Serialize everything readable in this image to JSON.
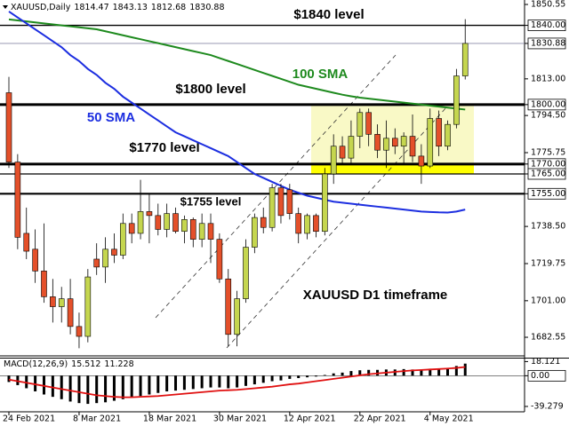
{
  "chart_data": [
    {
      "type": "candlestick",
      "title": "XAUUSD,Daily",
      "annotation": "XAUUSD D1 timeframe",
      "categories": [
        "24 Feb 2021",
        null,
        null,
        null,
        null,
        null,
        null,
        null,
        "8 Mar 2021",
        null,
        null,
        null,
        null,
        null,
        null,
        null,
        "18 Mar 2021",
        null,
        null,
        null,
        null,
        null,
        null,
        null,
        "30 Mar 2021",
        null,
        null,
        null,
        null,
        null,
        null,
        null,
        "12 Apr 2021",
        null,
        null,
        null,
        null,
        null,
        null,
        null,
        "22 Apr 2021",
        null,
        null,
        null,
        null,
        null,
        null,
        null,
        "4 May 2021",
        null,
        null,
        null,
        null
      ],
      "open": [
        1806,
        1771,
        1735,
        1727,
        1716,
        1703,
        1698,
        1702,
        1688,
        1683,
        1722,
        1718,
        1727,
        1724,
        1740,
        1735,
        1746,
        1744,
        1737,
        1745,
        1736,
        1742,
        1732,
        1740,
        1732,
        1712,
        1684,
        1702,
        1728,
        1743,
        1738,
        1758,
        1757,
        1745,
        1735,
        1744,
        1736,
        1765,
        1779,
        1773,
        1784,
        1796,
        1785,
        1777,
        1783,
        1779,
        1784,
        1774,
        1769,
        1793,
        1779,
        1790,
        1814.47
      ],
      "high": [
        1814,
        1775,
        1748,
        1737,
        1740,
        1712,
        1708,
        1712,
        1695,
        1717,
        1730,
        1733,
        1735,
        1745,
        1745,
        1762,
        1755,
        1750,
        1750,
        1748,
        1744,
        1743,
        1745,
        1745,
        1735,
        1717,
        1706,
        1732,
        1745,
        1748,
        1760,
        1760,
        1760,
        1748,
        1745,
        1745,
        1768,
        1785,
        1784,
        1792,
        1798,
        1798,
        1790,
        1792,
        1788,
        1786,
        1795,
        1780,
        1798,
        1797,
        1792,
        1818,
        1843.13
      ],
      "low": [
        1768,
        1727,
        1722,
        1710,
        1700,
        1690,
        1690,
        1684,
        1677,
        1680,
        1714,
        1710,
        1720,
        1722,
        1730,
        1732,
        1730,
        1734,
        1733,
        1735,
        1730,
        1728,
        1728,
        1720,
        1710,
        1678,
        1678,
        1700,
        1725,
        1735,
        1736,
        1740,
        1742,
        1730,
        1732,
        1733,
        1734,
        1760,
        1770,
        1770,
        1778,
        1779,
        1773,
        1768,
        1775,
        1770,
        1771,
        1760,
        1768,
        1774,
        1777,
        1788,
        1812.68
      ],
      "close": [
        1771,
        1733,
        1726,
        1716,
        1703,
        1698,
        1702,
        1688,
        1683,
        1713,
        1718,
        1727,
        1724,
        1740,
        1735,
        1746,
        1744,
        1737,
        1745,
        1736,
        1742,
        1732,
        1740,
        1732,
        1712,
        1684,
        1702,
        1728,
        1743,
        1738,
        1758,
        1744,
        1745,
        1735,
        1744,
        1736,
        1765,
        1779,
        1773,
        1784,
        1796,
        1785,
        1777,
        1783,
        1779,
        1784,
        1774,
        1769,
        1793,
        1779,
        1790,
        1814.47,
        1830.88
      ],
      "up_color": "#c5d64f",
      "down_color": "#e4502a",
      "overlays": [
        {
          "name": "100 SMA",
          "color": "#1e8a1e",
          "values": [
            1843,
            1842.5,
            1842,
            1841.5,
            1841,
            1840.5,
            1840,
            1839.5,
            1839,
            1838.5,
            1838,
            1837,
            1836,
            1835,
            1834,
            1833,
            1832,
            1831,
            1830,
            1829,
            1828,
            1827,
            1826,
            1825,
            1823.5,
            1822,
            1820.5,
            1819,
            1817.5,
            1816,
            1814.5,
            1813,
            1811.5,
            1810,
            1809,
            1808,
            1807,
            1806,
            1805,
            1804.2,
            1803.5,
            1803,
            1802.5,
            1802,
            1801.5,
            1801,
            1800.5,
            1800,
            1799.5,
            1799,
            1798.5,
            1798,
            1797.5
          ]
        },
        {
          "name": "50 SMA",
          "color": "#1c2ee0",
          "values": [
            1847,
            1844,
            1841,
            1838,
            1835,
            1832,
            1829,
            1825,
            1822,
            1818,
            1815,
            1811,
            1808,
            1804,
            1801,
            1798,
            1795,
            1792,
            1789,
            1786,
            1784,
            1782,
            1780,
            1778,
            1776,
            1774,
            1771,
            1768,
            1765,
            1763,
            1761,
            1759,
            1757,
            1755.5,
            1754,
            1753,
            1752,
            1751,
            1750.5,
            1750,
            1749.5,
            1749,
            1748.5,
            1748,
            1747.5,
            1747,
            1746.5,
            1746,
            1745.8,
            1745.6,
            1745.5,
            1746,
            1747
          ]
        }
      ],
      "ylim": [
        1673.6,
        1852.8
      ],
      "yticks": [
        {
          "value": 1850.55,
          "label": "1850.55"
        },
        {
          "value": 1813,
          "label": "1813.00"
        },
        {
          "value": 1794.5,
          "label": "1794.50"
        },
        {
          "value": 1775.75,
          "label": "1775.75"
        },
        {
          "value": 1738.5,
          "label": "1738.50"
        },
        {
          "value": 1719.75,
          "label": "1719.75"
        },
        {
          "value": 1701,
          "label": "1701.00"
        },
        {
          "value": 1682.55,
          "label": "1682.55"
        }
      ],
      "levels": [
        {
          "value": 1840,
          "label": "1840.00",
          "annotation": "$1840 level",
          "style": "thin"
        },
        {
          "value": 1800,
          "label": "1800.00",
          "annotation": "$1800 level",
          "style": "thick"
        },
        {
          "value": 1770,
          "label": "1770.00",
          "annotation": "$1770 level",
          "style": "thick"
        },
        {
          "value": 1765,
          "label": "1765.00",
          "style": "thin"
        },
        {
          "value": 1755,
          "label": "1755.00",
          "annotation": "$1755 level",
          "style": "medium"
        }
      ]
    },
    {
      "type": "macd",
      "title": "MACD(12,26,9)",
      "series": [
        {
          "color": "#000000",
          "values": [
            -8,
            -12,
            -16,
            -20,
            -24,
            -27,
            -30,
            -33,
            -35,
            -36,
            -35,
            -34,
            -32,
            -30,
            -28,
            -26,
            -24,
            -22,
            -20,
            -19,
            -18,
            -17,
            -16,
            -15,
            -15,
            -16,
            -15,
            -13,
            -11,
            -9,
            -7,
            -6,
            -4,
            -3,
            -2,
            -1,
            1,
            3,
            4,
            6,
            7,
            7.5,
            7.5,
            8,
            8,
            8.5,
            8,
            7.5,
            9,
            9,
            10,
            12.5,
            15.512
          ]
        },
        {
          "color": "#e01010",
          "values": [
            -5,
            -7,
            -9,
            -11,
            -13,
            -15,
            -17,
            -19,
            -21,
            -23,
            -25,
            -26,
            -27,
            -27.5,
            -27.5,
            -27,
            -26.5,
            -26,
            -25,
            -24,
            -23,
            -22,
            -21,
            -20,
            -19,
            -18.5,
            -18,
            -17,
            -16,
            -15,
            -14,
            -12.5,
            -11,
            -10,
            -8.5,
            -7,
            -5.5,
            -4,
            -2.5,
            -1,
            0.5,
            2,
            3,
            4,
            5,
            6,
            6.8,
            7.4,
            8,
            8.6,
            9.2,
            10,
            11.228
          ]
        }
      ],
      "ylim": [
        -45,
        22
      ],
      "yticks": [
        18.121,
        {
          "value": 0,
          "label": "0.00"
        },
        -39.279
      ]
    }
  ]
}
